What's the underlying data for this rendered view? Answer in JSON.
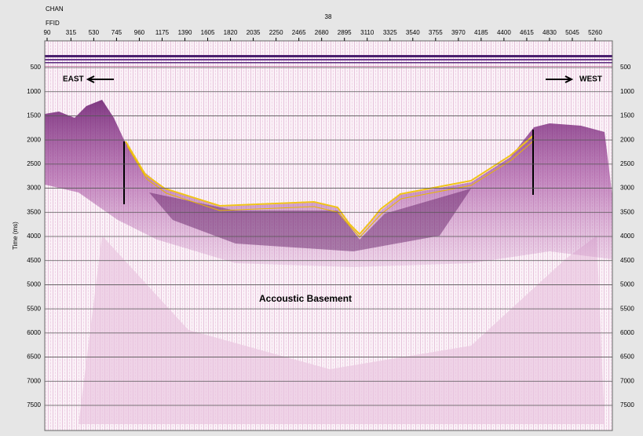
{
  "header": {
    "chan_label": "CHAN",
    "ffid_label": "FFID",
    "line_number": "38"
  },
  "x_axis": {
    "ticks": [
      90,
      315,
      530,
      745,
      960,
      1175,
      1390,
      1605,
      1820,
      2035,
      2250,
      2465,
      2680,
      2895,
      3110,
      3325,
      3540,
      3755,
      3970,
      4185,
      4400,
      4615,
      4830,
      5045,
      5260
    ]
  },
  "y_axis": {
    "title": "Time (ms)",
    "ticks": [
      500,
      1000,
      1500,
      2000,
      2500,
      3000,
      3500,
      4000,
      4500,
      5000,
      5500,
      6000,
      6500,
      7000,
      7500
    ]
  },
  "annotations": {
    "east": "EAST",
    "west": "WEST",
    "basement": "Accoustic Basement"
  }
}
